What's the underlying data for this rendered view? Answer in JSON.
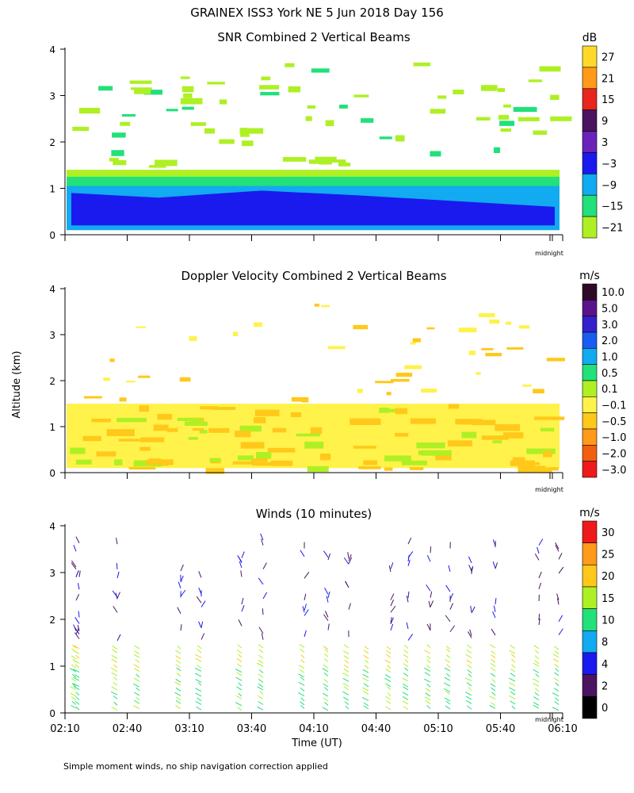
{
  "title": "GRAINEX ISS3 York NE   5 Jun 2018 Day 156",
  "ylabel": "Altitude (km)",
  "footnote": "Simple moment winds, no ship navigation correction applied",
  "midnight_label": "midnight",
  "chart_data": [
    {
      "type": "heatmap",
      "title": "SNR Combined 2 Vertical Beams",
      "ylim": [
        0,
        4
      ],
      "yticks": [
        "0",
        "1",
        "2",
        "3",
        "4"
      ],
      "colorbar": {
        "unit": "dB",
        "labels": [
          "27",
          "21",
          "15",
          "9",
          "3",
          "−3",
          "−9",
          "−15",
          "−21"
        ],
        "colors": [
          "#ffd92a",
          "#ff9a1a",
          "#e8261e",
          "#4a1460",
          "#6a22b8",
          "#1a1aee",
          "#12aaf0",
          "#22e07a",
          "#aef024"
        ]
      }
    },
    {
      "type": "heatmap",
      "title": "Doppler Velocity Combined 2 Vertical Beams",
      "ylim": [
        0,
        4
      ],
      "yticks": [
        "0",
        "1",
        "2",
        "3",
        "4"
      ],
      "colorbar": {
        "unit": "m/s",
        "labels": [
          "10.0",
          "5.0",
          "3.0",
          "2.0",
          "1.0",
          "0.5",
          "0.1",
          "−0.1",
          "−0.5",
          "−1.0",
          "−2.0",
          "−3.0"
        ],
        "colors": [
          "#2e0a28",
          "#5a148a",
          "#3322cc",
          "#1a5cf0",
          "#12aaf0",
          "#22e07a",
          "#aef024",
          "#fff24a",
          "#ffc81a",
          "#ff9a1a",
          "#f0600e",
          "#ee1a1a"
        ]
      }
    },
    {
      "type": "scatter",
      "title": "Winds (10 minutes)",
      "ylim": [
        0,
        4
      ],
      "yticks": [
        "0",
        "1",
        "2",
        "3",
        "4"
      ],
      "xlabel": "Time (UT)",
      "xticks": [
        "02:10",
        "02:40",
        "03:10",
        "03:40",
        "04:10",
        "04:40",
        "05:10",
        "05:40",
        "06:10"
      ],
      "colorbar": {
        "unit": "m/s",
        "labels": [
          "30",
          "25",
          "20",
          "15",
          "10",
          "8",
          "4",
          "2",
          "0"
        ],
        "colors": [
          "#ee1a1a",
          "#ff9a1a",
          "#ffc81a",
          "#aef024",
          "#22e07a",
          "#12aaf0",
          "#1a1aee",
          "#4a1460",
          "#000000"
        ]
      }
    }
  ]
}
